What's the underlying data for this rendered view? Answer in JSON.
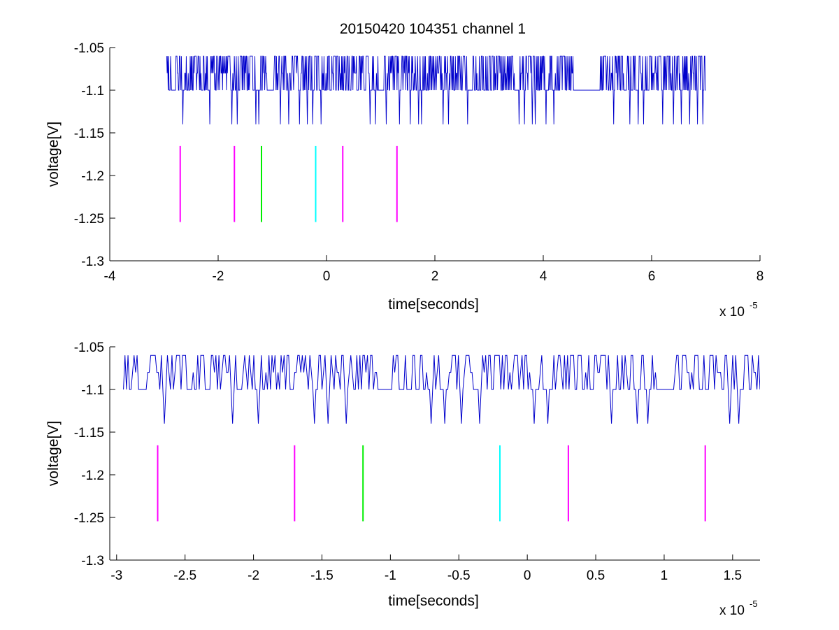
{
  "figure": {
    "title": "20150420 104351 channel 1",
    "background": "#ffffff",
    "colors": {
      "trace": "#0000cc",
      "marker_magenta": "#ff00ff",
      "marker_green": "#00ee00",
      "marker_cyan": "#00ffff",
      "axes": "#000000"
    }
  },
  "chart_data": [
    {
      "type": "line",
      "title": "20150420 104351 channel 1",
      "xlabel": "time[seconds]",
      "ylabel": "voltage[V]",
      "x_exponent_label": "x 10",
      "x_exponent": "-5",
      "xlim": [
        -4,
        8
      ],
      "ylim": [
        -1.3,
        -1.05
      ],
      "xticks": [
        -4,
        -2,
        0,
        2,
        4,
        6,
        8
      ],
      "xtick_labels": [
        "-4",
        "-2",
        "0",
        "2",
        "4",
        "6",
        "8"
      ],
      "yticks": [
        -1.3,
        -1.25,
        -1.2,
        -1.15,
        -1.1,
        -1.05
      ],
      "ytick_labels": [
        "-1.3",
        "-1.25",
        "-1.2",
        "-1.15",
        "-1.1",
        "-1.05"
      ],
      "grid": false,
      "trace": {
        "name": "voltage",
        "color": "#0000cc",
        "x_range": [
          -2.95,
          7.0
        ],
        "levels": [
          -1.06,
          -1.08,
          -1.1,
          -1.14
        ],
        "baseline": -1.1,
        "dip_times": [
          -2.65,
          -2.15,
          -1.75,
          -1.65,
          -1.3,
          -1.25,
          -0.85,
          -0.7,
          -0.5,
          -0.35,
          -0.25,
          -0.1,
          0.8,
          0.9,
          1.1,
          1.35,
          1.55,
          1.7,
          1.75,
          2.15,
          2.25,
          2.6,
          3.55,
          3.65,
          3.8,
          3.85,
          4.05,
          4.2,
          5.3,
          5.6,
          5.75,
          5.85,
          6.2,
          6.4,
          6.55,
          6.7,
          6.85,
          6.95
        ]
      },
      "markers": [
        {
          "x": -2.7,
          "y": [
            -1.2545,
            -1.1655
          ],
          "color": "#ff00ff"
        },
        {
          "x": -1.7,
          "y": [
            -1.2545,
            -1.1655
          ],
          "color": "#ff00ff"
        },
        {
          "x": -1.2,
          "y": [
            -1.2545,
            -1.1655
          ],
          "color": "#00ee00"
        },
        {
          "x": -0.2,
          "y": [
            -1.2545,
            -1.1655
          ],
          "color": "#00ffff"
        },
        {
          "x": 0.3,
          "y": [
            -1.2545,
            -1.1655
          ],
          "color": "#ff00ff"
        },
        {
          "x": 1.3,
          "y": [
            -1.2545,
            -1.1655
          ],
          "color": "#ff00ff"
        }
      ]
    },
    {
      "type": "line",
      "title": "",
      "xlabel": "time[seconds]",
      "ylabel": "voltage[V]",
      "x_exponent_label": "x 10",
      "x_exponent": "-5",
      "xlim": [
        -3.05,
        1.7
      ],
      "ylim": [
        -1.3,
        -1.05
      ],
      "xticks": [
        -3,
        -2.5,
        -2,
        -1.5,
        -1,
        -0.5,
        0,
        0.5,
        1,
        1.5
      ],
      "xtick_labels": [
        "-3",
        "-2.5",
        "-2",
        "-1.5",
        "-1",
        "-0.5",
        "0",
        "0.5",
        "1",
        "1.5"
      ],
      "yticks": [
        -1.3,
        -1.25,
        -1.2,
        -1.15,
        -1.1,
        -1.05
      ],
      "ytick_labels": [
        "-1.3",
        "-1.25",
        "-1.2",
        "-1.15",
        "-1.1",
        "-1.05"
      ],
      "grid": false,
      "trace": {
        "name": "voltage",
        "color": "#0000cc",
        "x_range": [
          -2.95,
          1.7
        ],
        "levels": [
          -1.06,
          -1.08,
          -1.1,
          -1.14
        ],
        "baseline": -1.1,
        "dip_times": [
          -2.65,
          -2.15,
          -1.97,
          -1.55,
          -1.45,
          -1.32,
          -0.7,
          -0.6,
          -0.48,
          -0.35,
          0.05,
          0.15,
          0.62,
          0.8,
          0.88,
          1.48,
          1.55
        ]
      },
      "markers": [
        {
          "x": -2.7,
          "y": [
            -1.2545,
            -1.1655
          ],
          "color": "#ff00ff"
        },
        {
          "x": -1.7,
          "y": [
            -1.2545,
            -1.1655
          ],
          "color": "#ff00ff"
        },
        {
          "x": -1.2,
          "y": [
            -1.2545,
            -1.1655
          ],
          "color": "#00ee00"
        },
        {
          "x": -0.2,
          "y": [
            -1.2545,
            -1.1655
          ],
          "color": "#00ffff"
        },
        {
          "x": 0.3,
          "y": [
            -1.2545,
            -1.1655
          ],
          "color": "#ff00ff"
        },
        {
          "x": 1.3,
          "y": [
            -1.2545,
            -1.1655
          ],
          "color": "#ff00ff"
        }
      ]
    }
  ]
}
